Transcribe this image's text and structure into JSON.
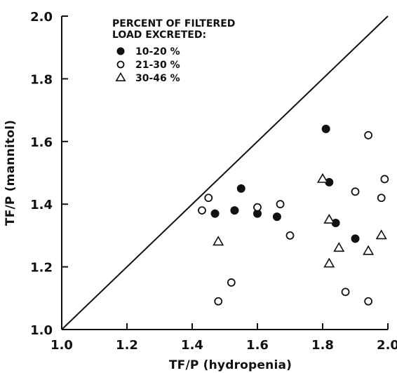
{
  "chart_data": {
    "type": "scatter",
    "xlabel": "TF/P (hydropenia)",
    "ylabel": "TF/P (mannitol)",
    "xlim": [
      1.0,
      2.0
    ],
    "ylim": [
      1.0,
      2.0
    ],
    "x_ticks": [
      "1.0",
      "1.2",
      "1.4",
      "1.6",
      "1.8",
      "2.0"
    ],
    "y_ticks": [
      "1.0",
      "1.2",
      "1.4",
      "1.6",
      "1.8",
      "2.0"
    ],
    "grid": false,
    "reference_line": {
      "type": "identity",
      "from": [
        1.0,
        1.0
      ],
      "to": [
        2.0,
        2.0
      ]
    },
    "legend": {
      "title_lines": [
        "PERCENT OF FILTERED",
        "LOAD EXCRETED:"
      ],
      "placement": "top-left"
    },
    "series": [
      {
        "name": "10-20 %",
        "marker": "filled-circle",
        "points": [
          {
            "x": 1.47,
            "y": 1.37
          },
          {
            "x": 1.53,
            "y": 1.38
          },
          {
            "x": 1.55,
            "y": 1.45
          },
          {
            "x": 1.6,
            "y": 1.37
          },
          {
            "x": 1.66,
            "y": 1.36
          },
          {
            "x": 1.81,
            "y": 1.64
          },
          {
            "x": 1.82,
            "y": 1.47
          },
          {
            "x": 1.84,
            "y": 1.34
          },
          {
            "x": 1.9,
            "y": 1.29
          }
        ]
      },
      {
        "name": "21-30 %",
        "marker": "open-circle",
        "points": [
          {
            "x": 1.43,
            "y": 1.38
          },
          {
            "x": 1.45,
            "y": 1.42
          },
          {
            "x": 1.48,
            "y": 1.09
          },
          {
            "x": 1.52,
            "y": 1.15
          },
          {
            "x": 1.6,
            "y": 1.39
          },
          {
            "x": 1.67,
            "y": 1.4
          },
          {
            "x": 1.7,
            "y": 1.3
          },
          {
            "x": 1.87,
            "y": 1.12
          },
          {
            "x": 1.9,
            "y": 1.44
          },
          {
            "x": 1.94,
            "y": 1.62
          },
          {
            "x": 1.94,
            "y": 1.09
          },
          {
            "x": 1.98,
            "y": 1.42
          },
          {
            "x": 1.99,
            "y": 1.48
          }
        ]
      },
      {
        "name": "30-46 %",
        "marker": "open-triangle",
        "points": [
          {
            "x": 1.48,
            "y": 1.28
          },
          {
            "x": 1.8,
            "y": 1.48
          },
          {
            "x": 1.82,
            "y": 1.35
          },
          {
            "x": 1.82,
            "y": 1.21
          },
          {
            "x": 1.85,
            "y": 1.26
          },
          {
            "x": 1.94,
            "y": 1.25
          },
          {
            "x": 1.98,
            "y": 1.3
          }
        ]
      }
    ]
  }
}
